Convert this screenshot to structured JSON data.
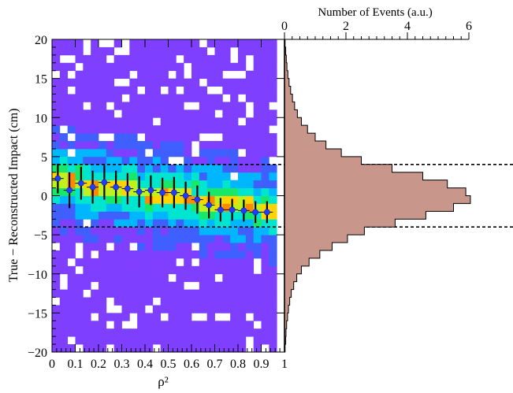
{
  "chart_data": [
    {
      "type": "heatmap",
      "title": "",
      "xlabel": "ρ²",
      "ylabel": "True − Reconstructed Impact (cm)",
      "xlim": [
        0,
        1
      ],
      "ylim": [
        -20,
        20
      ],
      "x_ticks": [
        "0",
        "0.1",
        "0.2",
        "0.3",
        "0.4",
        "0.5",
        "0.6",
        "0.7",
        "0.8",
        "0.9",
        "1"
      ],
      "y_ticks": [
        "−20",
        "−15",
        "−10",
        "−5",
        "0",
        "5",
        "10",
        "15",
        "20"
      ],
      "colormap": [
        "#7f3fff",
        "#3f5fff",
        "#00b7ff",
        "#00e5d0",
        "#17e86a",
        "#bff21c",
        "#ffd400",
        "#ff8a00",
        "#e8140c"
      ],
      "band_center_at_rho2": [
        [
          0.0,
          2.0
        ],
        [
          1.0,
          -2.0
        ]
      ],
      "band_halfwidth_cm": 3.5,
      "profile": {
        "name": "mean ± RMS",
        "marker_color": "#1f3cff",
        "x": [
          0.025,
          0.075,
          0.125,
          0.175,
          0.225,
          0.275,
          0.325,
          0.375,
          0.425,
          0.475,
          0.525,
          0.575,
          0.625,
          0.675,
          0.725,
          0.775,
          0.825,
          0.875,
          0.925
        ],
        "y": [
          2.2,
          0.7,
          1.6,
          1.1,
          1.7,
          1.1,
          0.9,
          0.5,
          0.7,
          0.4,
          0.4,
          0.0,
          -0.5,
          -1.2,
          -1.8,
          -1.8,
          -1.9,
          -2.1,
          -2.1
        ],
        "yerr": [
          1.9,
          2.3,
          2.1,
          2.1,
          2.2,
          2.1,
          2.0,
          2.0,
          1.9,
          1.9,
          2.0,
          1.8,
          1.8,
          1.7,
          1.5,
          1.4,
          1.4,
          1.4,
          1.4
        ]
      }
    },
    {
      "type": "bar",
      "orientation": "horizontal",
      "xlabel": "Number of Events (a.u.)",
      "xlim": [
        0,
        6
      ],
      "x_ticks": [
        "0",
        "2",
        "4",
        "6"
      ],
      "fill_color": "#c8968b",
      "y_bins_lower_edges": [
        -20,
        -19,
        -18,
        -17,
        -16,
        -15,
        -14,
        -13,
        -12,
        -11,
        -10,
        -9,
        -8,
        -7,
        -6,
        -5,
        -4,
        -3,
        -2,
        -1,
        0,
        1,
        2,
        3,
        4,
        5,
        6,
        7,
        8,
        9,
        10,
        11,
        12,
        13,
        14,
        15,
        16,
        17,
        18,
        19
      ],
      "values": [
        0.02,
        0.04,
        0.05,
        0.07,
        0.1,
        0.13,
        0.17,
        0.22,
        0.3,
        0.4,
        0.55,
        0.8,
        1.15,
        1.55,
        2.05,
        2.6,
        3.6,
        4.6,
        5.5,
        6.05,
        5.9,
        5.3,
        4.5,
        3.5,
        2.5,
        1.85,
        1.35,
        1.0,
        0.75,
        0.55,
        0.42,
        0.33,
        0.26,
        0.2,
        0.15,
        0.11,
        0.08,
        0.06,
        0.04,
        0.02
      ]
    }
  ],
  "reference_lines": {
    "y_values": [
      4,
      -4
    ],
    "style": "dashed"
  }
}
